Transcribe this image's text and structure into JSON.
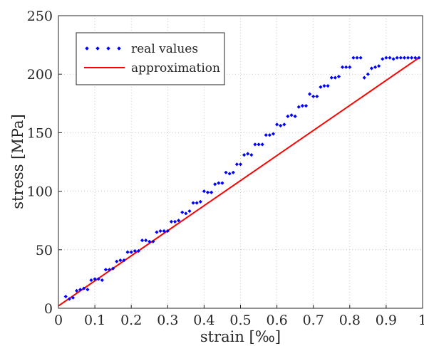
{
  "chart_data": {
    "type": "scatter",
    "xlabel": "strain [‰]",
    "ylabel": "stress [MPa]",
    "xlim": [
      0,
      1
    ],
    "ylim": [
      0,
      250
    ],
    "x_ticks": [
      "0",
      "0.1",
      "0.2",
      "0.3",
      "0.4",
      "0.5",
      "0.6",
      "0.7",
      "0.8",
      "0.9",
      "1"
    ],
    "y_ticks": [
      "0",
      "50",
      "100",
      "150",
      "200",
      "250"
    ],
    "grid": true,
    "legend_position": "top-left",
    "colors": {
      "points": "#0000ff",
      "line": "#ff0000",
      "grid": "#c8c8c8",
      "axis": "#262626"
    },
    "series": [
      {
        "name": "real values",
        "style": "points",
        "x": [
          0.02,
          0.03,
          0.04,
          0.05,
          0.06,
          0.07,
          0.08,
          0.09,
          0.1,
          0.11,
          0.12,
          0.13,
          0.14,
          0.15,
          0.16,
          0.17,
          0.18,
          0.19,
          0.2,
          0.21,
          0.22,
          0.23,
          0.24,
          0.25,
          0.26,
          0.27,
          0.28,
          0.29,
          0.3,
          0.31,
          0.32,
          0.33,
          0.34,
          0.35,
          0.36,
          0.37,
          0.38,
          0.39,
          0.4,
          0.41,
          0.42,
          0.43,
          0.44,
          0.45,
          0.46,
          0.47,
          0.48,
          0.49,
          0.5,
          0.51,
          0.52,
          0.53,
          0.54,
          0.55,
          0.56,
          0.57,
          0.58,
          0.59,
          0.6,
          0.61,
          0.62,
          0.63,
          0.64,
          0.65,
          0.66,
          0.67,
          0.68,
          0.69,
          0.7,
          0.71,
          0.72,
          0.73,
          0.74,
          0.75,
          0.76,
          0.77,
          0.78,
          0.79,
          0.8,
          0.81,
          0.82,
          0.83,
          0.84,
          0.85,
          0.86,
          0.87,
          0.88,
          0.89,
          0.9,
          0.91,
          0.92,
          0.93,
          0.94,
          0.95,
          0.96,
          0.97,
          0.98,
          0.99
        ],
        "y": [
          10,
          8,
          9,
          15,
          16,
          17,
          16,
          24,
          25,
          25,
          24,
          33,
          33,
          34,
          40,
          41,
          41,
          48,
          48,
          49,
          49,
          58,
          58,
          57,
          57,
          65,
          66,
          66,
          66,
          74,
          74,
          75,
          82,
          81,
          83,
          90,
          90,
          91,
          100,
          99,
          99,
          106,
          107,
          107,
          116,
          115,
          116,
          123,
          123,
          131,
          132,
          131,
          140,
          140,
          140,
          148,
          148,
          149,
          157,
          156,
          157,
          164,
          165,
          164,
          172,
          173,
          173,
          183,
          181,
          181,
          189,
          190,
          190,
          197,
          197,
          198,
          206,
          206,
          206,
          214,
          214,
          214,
          197,
          200,
          205,
          206,
          207,
          213,
          214,
          214,
          213,
          214,
          214,
          214,
          214,
          214,
          214,
          214
        ]
      },
      {
        "name": "approximation",
        "style": "line",
        "x": [
          0.0,
          0.99
        ],
        "y": [
          2,
          214
        ]
      }
    ]
  }
}
